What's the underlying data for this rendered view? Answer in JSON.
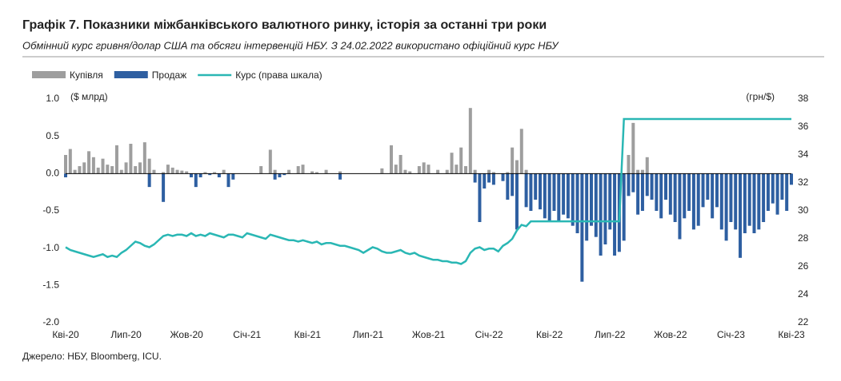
{
  "chart_data": {
    "type": "bar",
    "title": "Графік 7. Показники міжбанківського валютного ринку, історія за останні три роки",
    "subtitle": "Обмінний курс гривня/долар США та обсяги інтервенцій НБУ. З 24.02.2022 використано офіційний курс НБУ",
    "y_label": "($ млрд)",
    "y2_label": "(грн/$)",
    "source": "Джерело: НБУ, Bloomberg, ICU.",
    "categories": [
      "Кві-20",
      null,
      null,
      null,
      null,
      null,
      null,
      null,
      null,
      null,
      null,
      null,
      null,
      "Лип-20",
      null,
      null,
      null,
      null,
      null,
      null,
      null,
      null,
      null,
      null,
      null,
      null,
      "Жов-20",
      null,
      null,
      null,
      null,
      null,
      null,
      null,
      null,
      null,
      null,
      null,
      null,
      "Січ-21",
      null,
      null,
      null,
      null,
      null,
      null,
      null,
      null,
      null,
      null,
      null,
      null,
      "Кві-21",
      null,
      null,
      null,
      null,
      null,
      null,
      null,
      null,
      null,
      null,
      null,
      null,
      "Лип-21",
      null,
      null,
      null,
      null,
      null,
      null,
      null,
      null,
      null,
      null,
      null,
      null,
      "Жов-21",
      null,
      null,
      null,
      null,
      null,
      null,
      null,
      null,
      null,
      null,
      null,
      null,
      "Січ-22",
      null,
      null,
      null,
      null,
      null,
      null,
      null,
      null,
      null,
      null,
      null,
      null,
      "Кві-22",
      null,
      null,
      null,
      null,
      null,
      null,
      null,
      null,
      null,
      null,
      null,
      null,
      "Лип-22",
      null,
      null,
      null,
      null,
      null,
      null,
      null,
      null,
      null,
      null,
      null,
      null,
      "Жов-22",
      null,
      null,
      null,
      null,
      null,
      null,
      null,
      null,
      null,
      null,
      null,
      null,
      "Січ-23",
      null,
      null,
      null,
      null,
      null,
      null,
      null,
      null,
      null,
      null,
      null,
      null,
      "Кві-23"
    ],
    "series": [
      {
        "name": "Купівля",
        "type": "bar",
        "color": "#9e9e9e",
        "values": [
          0.25,
          0.33,
          0.05,
          0.1,
          0.15,
          0.3,
          0.22,
          0.08,
          0.2,
          0.12,
          0.1,
          0.38,
          0.05,
          0.15,
          0.4,
          0.1,
          0.15,
          0.42,
          0.2,
          0.05,
          0,
          0.02,
          0.12,
          0.08,
          0.05,
          0.04,
          0.03,
          0,
          0,
          0,
          0.02,
          0,
          0.02,
          0,
          0.05,
          0,
          0,
          0,
          0,
          0,
          0,
          0,
          0.1,
          0,
          0.32,
          0.05,
          0,
          0,
          0.05,
          0,
          0.1,
          0.12,
          0,
          0.03,
          0.02,
          0,
          0.05,
          0,
          0,
          0.03,
          0,
          0,
          0,
          0,
          0,
          0,
          0,
          0,
          0.07,
          0,
          0.38,
          0.12,
          0.25,
          0.05,
          0.03,
          0,
          0.1,
          0.15,
          0.12,
          0,
          0.05,
          0,
          0.05,
          0.28,
          0.12,
          0.35,
          0.1,
          0.88,
          0.05,
          0,
          0,
          0.05,
          0.02,
          0,
          0,
          0.02,
          0.35,
          0.18,
          0.6,
          0.05,
          0,
          0,
          0,
          0,
          0,
          0,
          0,
          0,
          0,
          0,
          0,
          0,
          0,
          0,
          0,
          0,
          0,
          0,
          0,
          0,
          0,
          0.25,
          0.68,
          0.05,
          0.05,
          0.22,
          0,
          0,
          0,
          0,
          0,
          0,
          0,
          0,
          0,
          0,
          0,
          0,
          0,
          0,
          0,
          0,
          0,
          0,
          0,
          0,
          0,
          0,
          0,
          0,
          0,
          0,
          0,
          0,
          0,
          0,
          0
        ]
      },
      {
        "name": "Продаж",
        "type": "bar",
        "color": "#2e5fa1",
        "values": [
          -0.05,
          0,
          0,
          0,
          0,
          0,
          0,
          0,
          0,
          0,
          0,
          0,
          0,
          0,
          0,
          0,
          0,
          0,
          -0.18,
          0,
          0,
          -0.38,
          0,
          0,
          0,
          0,
          0,
          -0.05,
          -0.18,
          -0.05,
          0,
          -0.02,
          0,
          -0.05,
          0,
          -0.18,
          -0.08,
          0,
          0,
          0,
          0,
          0,
          0,
          0,
          0,
          -0.08,
          -0.05,
          -0.02,
          0,
          0,
          0,
          0,
          0,
          0,
          0,
          0,
          0,
          0,
          0,
          -0.08,
          0,
          0,
          0,
          0,
          0,
          0,
          0,
          0,
          0,
          0,
          0,
          0,
          0,
          0,
          0,
          0,
          0,
          0,
          0,
          0,
          0,
          0,
          0,
          0,
          0,
          0,
          0,
          0,
          -0.12,
          -0.65,
          -0.2,
          -0.12,
          -0.15,
          0,
          -0.1,
          -0.35,
          -0.3,
          -0.75,
          0,
          -0.45,
          -0.5,
          -0.35,
          -0.48,
          -0.6,
          -0.65,
          -0.5,
          -0.65,
          -0.55,
          -0.6,
          -0.7,
          -0.8,
          -1.45,
          -0.9,
          -0.7,
          -0.85,
          -1.1,
          -0.95,
          -0.75,
          -1.1,
          -1.05,
          -0.9,
          -0.3,
          -0.25,
          -0.55,
          -0.5,
          -0.3,
          -0.35,
          -0.5,
          -0.6,
          -0.35,
          -0.55,
          -0.65,
          -0.88,
          -0.6,
          -0.5,
          -0.75,
          -0.7,
          -0.45,
          -0.35,
          -0.6,
          -0.45,
          -0.75,
          -0.9,
          -0.65,
          -0.75,
          -1.13,
          -0.8,
          -0.7,
          -0.8,
          -0.75,
          -0.65,
          -0.5,
          -0.4,
          -0.55,
          -0.35,
          -0.5,
          -0.15
        ]
      },
      {
        "name": "Курс (права шкала)",
        "type": "line",
        "axis": "y2",
        "color": "#2ab7b4",
        "values": [
          27.4,
          27.2,
          27.1,
          27.0,
          26.9,
          26.8,
          26.7,
          26.8,
          26.9,
          26.7,
          26.8,
          26.7,
          27.0,
          27.2,
          27.5,
          27.8,
          27.7,
          27.5,
          27.4,
          27.6,
          27.9,
          28.2,
          28.3,
          28.2,
          28.3,
          28.3,
          28.2,
          28.4,
          28.2,
          28.3,
          28.2,
          28.4,
          28.3,
          28.2,
          28.1,
          28.3,
          28.3,
          28.2,
          28.1,
          28.4,
          28.3,
          28.2,
          28.1,
          28.0,
          28.3,
          28.2,
          28.1,
          28.0,
          27.9,
          27.9,
          27.8,
          27.9,
          27.8,
          27.7,
          27.8,
          27.6,
          27.7,
          27.7,
          27.6,
          27.5,
          27.5,
          27.4,
          27.3,
          27.2,
          27.0,
          27.2,
          27.4,
          27.3,
          27.1,
          27.0,
          27.0,
          27.1,
          27.2,
          27.0,
          26.9,
          27.0,
          26.8,
          26.7,
          26.6,
          26.5,
          26.5,
          26.4,
          26.4,
          26.3,
          26.3,
          26.2,
          26.4,
          27.0,
          27.3,
          27.4,
          27.2,
          27.3,
          27.3,
          27.1,
          27.5,
          27.7,
          28.0,
          28.6,
          29.0,
          28.9,
          29.25,
          29.25,
          29.25,
          29.25,
          29.25,
          29.25,
          29.25,
          29.25,
          29.25,
          29.25,
          29.25,
          29.25,
          29.25,
          29.25,
          29.25,
          29.25,
          29.25,
          29.25,
          29.25,
          29.25,
          36.57,
          36.57,
          36.57,
          36.57,
          36.57,
          36.57,
          36.57,
          36.57,
          36.57,
          36.57,
          36.57,
          36.57,
          36.57,
          36.57,
          36.57,
          36.57,
          36.57,
          36.57,
          36.57,
          36.57,
          36.57,
          36.57,
          36.57,
          36.57,
          36.57,
          36.57,
          36.57,
          36.57,
          36.57,
          36.57,
          36.57,
          36.57,
          36.57,
          36.57,
          36.57,
          36.57,
          36.57
        ]
      }
    ],
    "ylim": [
      -2.0,
      1.0
    ],
    "yticks": [
      {
        "value": 1,
        "label": "1.0"
      },
      0.5,
      {
        "value": 0,
        "label": "0.0"
      },
      -0.5,
      {
        "value": -1,
        "label": "-1.0"
      },
      -1.5,
      {
        "value": -2,
        "label": "-2.0"
      }
    ],
    "y2lim": [
      22,
      38
    ],
    "y2ticks": [
      22,
      24,
      26,
      28,
      30,
      32,
      34,
      36,
      38
    ],
    "grid": false,
    "legend": "top-left"
  }
}
